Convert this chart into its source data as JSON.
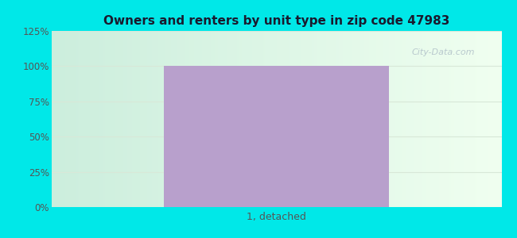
{
  "title": "Owners and renters by unit type in zip code 47983",
  "categories": [
    "1, detached"
  ],
  "values": [
    100
  ],
  "bar_color": "#b8a0cc",
  "ylim": [
    0,
    125
  ],
  "yticks": [
    0,
    25,
    50,
    75,
    100,
    125
  ],
  "yticklabels": [
    "0%",
    "25%",
    "50%",
    "75%",
    "100%",
    "125%"
  ],
  "title_fontsize": 11,
  "tick_fontsize": 8.5,
  "xlabel_fontsize": 9,
  "background_color": "#00e8e8",
  "watermark_text": "City-Data.com",
  "title_color": "#1a1a2e",
  "tick_color": "#555555",
  "grid_color": "#e0e8e0",
  "figsize": [
    6.5,
    3.0
  ],
  "dpi": 100
}
